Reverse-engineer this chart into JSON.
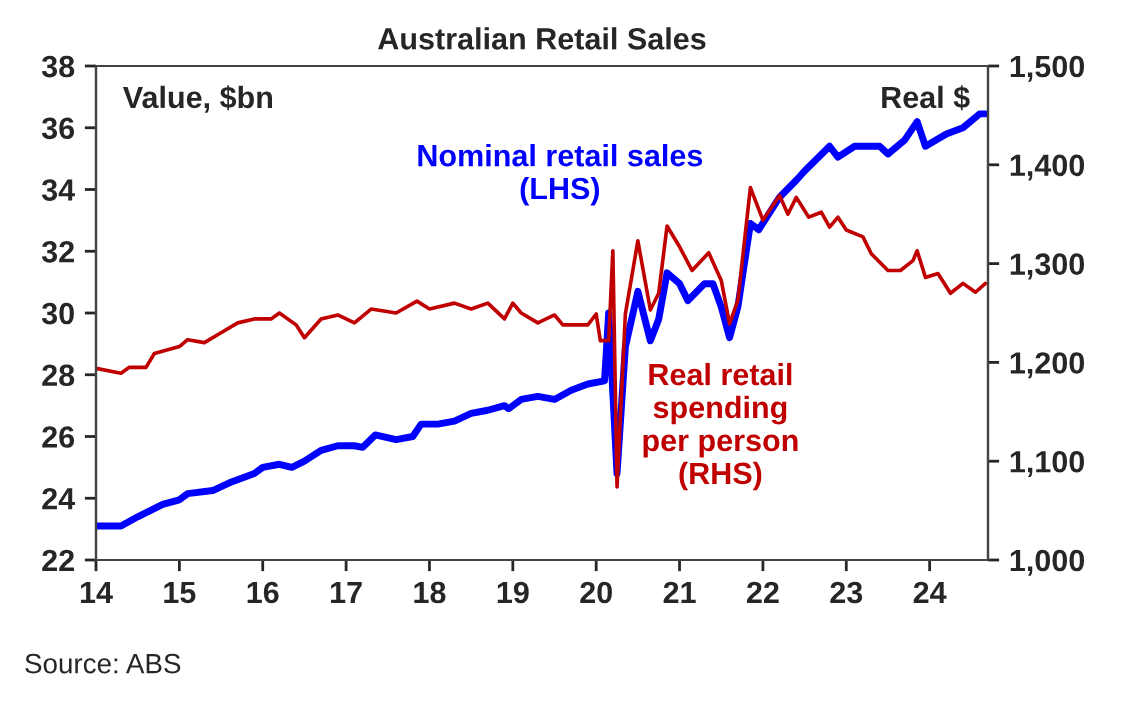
{
  "chart_data": {
    "type": "line",
    "title": "Australian Retail Sales",
    "ylabel": "Value, $bn",
    "y2label": "Real $",
    "xlim": [
      14,
      24.7
    ],
    "xticks": [
      {
        "value": 14,
        "label": "14"
      },
      {
        "value": 15,
        "label": "15"
      },
      {
        "value": 16,
        "label": "16"
      },
      {
        "value": 17,
        "label": "17"
      },
      {
        "value": 18,
        "label": "18"
      },
      {
        "value": 19,
        "label": "19"
      },
      {
        "value": 20,
        "label": "20"
      },
      {
        "value": 21,
        "label": "21"
      },
      {
        "value": 22,
        "label": "22"
      },
      {
        "value": 23,
        "label": "23"
      },
      {
        "value": 24,
        "label": "24"
      }
    ],
    "ylim": [
      22,
      38
    ],
    "yticks": [
      22,
      24,
      26,
      28,
      30,
      32,
      34,
      36,
      38
    ],
    "y2lim": [
      1000,
      1500
    ],
    "y2ticks": [
      {
        "value": 1000,
        "label": "1,000"
      },
      {
        "value": 1100,
        "label": "1,100"
      },
      {
        "value": 1200,
        "label": "1,200"
      },
      {
        "value": 1300,
        "label": "1,300"
      },
      {
        "value": 1400,
        "label": "1,400"
      },
      {
        "value": 1500,
        "label": "1,500"
      }
    ],
    "series": [
      {
        "name": "Nominal retail sales\n(LHS)",
        "color": "#0000ff",
        "axis": "y",
        "x": [
          14.0,
          14.3,
          14.5,
          14.8,
          15.0,
          15.1,
          15.4,
          15.6,
          15.9,
          16.0,
          16.2,
          16.35,
          16.5,
          16.7,
          16.9,
          17.1,
          17.2,
          17.35,
          17.6,
          17.8,
          17.9,
          18.1,
          18.3,
          18.5,
          18.7,
          18.9,
          18.95,
          19.1,
          19.3,
          19.5,
          19.7,
          19.9,
          20.1,
          20.15,
          20.25,
          20.35,
          20.5,
          20.65,
          20.75,
          20.85,
          21.0,
          21.1,
          21.3,
          21.4,
          21.5,
          21.6,
          21.7,
          21.85,
          21.95,
          22.2,
          22.4,
          22.5,
          22.8,
          22.9,
          23.1,
          23.4,
          23.5,
          23.7,
          23.85,
          23.95,
          24.2,
          24.4,
          24.6,
          24.67
        ],
        "values": [
          23.1,
          23.1,
          23.4,
          23.8,
          23.95,
          24.15,
          24.25,
          24.5,
          24.8,
          25.0,
          25.1,
          25.0,
          25.2,
          25.55,
          25.7,
          25.7,
          25.65,
          26.05,
          25.9,
          26.0,
          26.4,
          26.4,
          26.5,
          26.75,
          26.85,
          27.0,
          26.9,
          27.2,
          27.3,
          27.2,
          27.5,
          27.7,
          27.8,
          30.0,
          24.8,
          28.9,
          30.7,
          29.1,
          29.8,
          31.3,
          30.95,
          30.4,
          30.95,
          30.95,
          30.2,
          29.2,
          30.2,
          32.9,
          32.7,
          33.75,
          34.3,
          34.6,
          35.4,
          35.05,
          35.4,
          35.4,
          35.15,
          35.6,
          36.2,
          35.4,
          35.8,
          36.0,
          36.45,
          36.45
        ]
      },
      {
        "name": "Real retail\nspending\nper person\n(RHS)",
        "color": "#c00000",
        "axis": "y2",
        "x": [
          14.0,
          14.3,
          14.4,
          14.6,
          14.7,
          15.0,
          15.1,
          15.3,
          15.5,
          15.7,
          15.9,
          16.1,
          16.2,
          16.4,
          16.5,
          16.7,
          16.9,
          17.1,
          17.3,
          17.6,
          17.85,
          18.0,
          18.3,
          18.5,
          18.7,
          18.9,
          19.0,
          19.1,
          19.3,
          19.5,
          19.6,
          19.9,
          20.0,
          20.05,
          20.15,
          20.2,
          20.25,
          20.35,
          20.5,
          20.65,
          20.75,
          20.85,
          21.0,
          21.15,
          21.35,
          21.5,
          21.6,
          21.7,
          21.85,
          22.0,
          22.2,
          22.3,
          22.4,
          22.55,
          22.7,
          22.8,
          22.9,
          23.0,
          23.2,
          23.3,
          23.5,
          23.65,
          23.8,
          23.85,
          23.95,
          24.1,
          24.25,
          24.4,
          24.55,
          24.67
        ],
        "values": [
          1194,
          1189,
          1195,
          1195,
          1209,
          1216,
          1223,
          1220,
          1230,
          1240,
          1244,
          1244,
          1250,
          1238,
          1225,
          1244,
          1248,
          1240,
          1254,
          1250,
          1262,
          1254,
          1260,
          1254,
          1260,
          1244,
          1260,
          1250,
          1240,
          1248,
          1238,
          1238,
          1249,
          1222,
          1222,
          1313,
          1074,
          1249,
          1323,
          1253,
          1270,
          1338,
          1317,
          1293,
          1311,
          1283,
          1239,
          1263,
          1377,
          1344,
          1369,
          1350,
          1367,
          1347,
          1352,
          1337,
          1347,
          1334,
          1327,
          1310,
          1293,
          1293,
          1303,
          1313,
          1286,
          1290,
          1270,
          1280,
          1271,
          1280
        ]
      }
    ],
    "annotations": [
      "Source: ABS"
    ]
  }
}
